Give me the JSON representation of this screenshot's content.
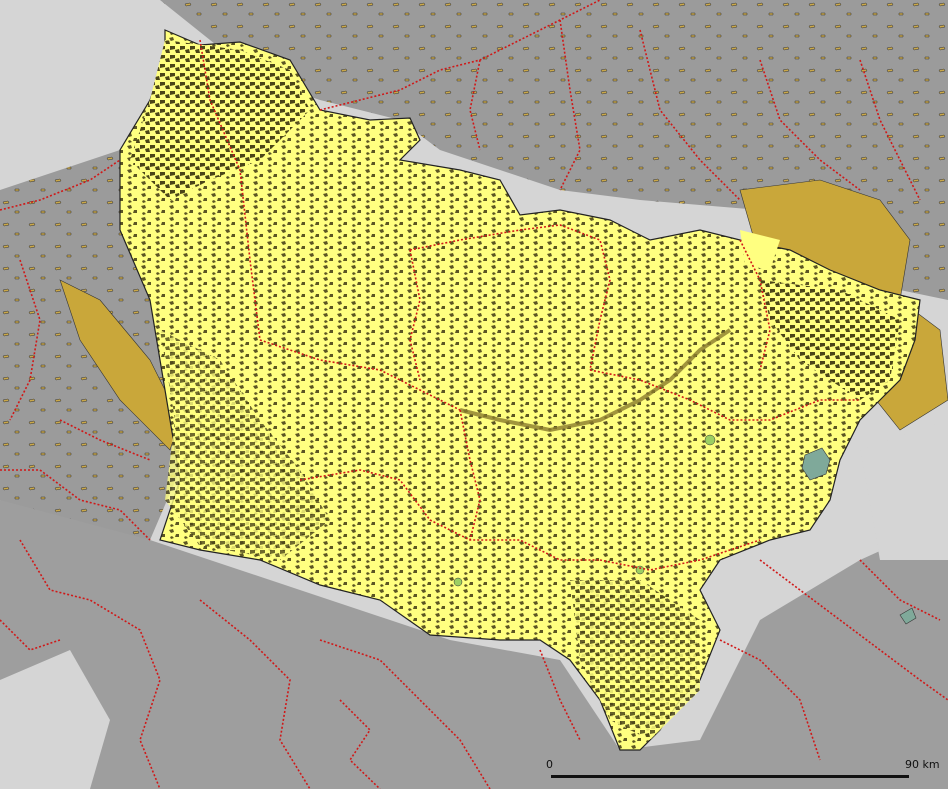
{
  "map": {
    "colors": {
      "background_light": "#d5d5d5",
      "background_dark": "#9b9b9b",
      "region": "#ffff80",
      "forest": "#5b5523",
      "dense_forest": "#c9a73a",
      "meadow": "#9ccf62",
      "water": "#7fa99a",
      "border": "#d01818"
    },
    "scale_bar": {
      "start_label": "0",
      "end_label": "90 km"
    }
  }
}
